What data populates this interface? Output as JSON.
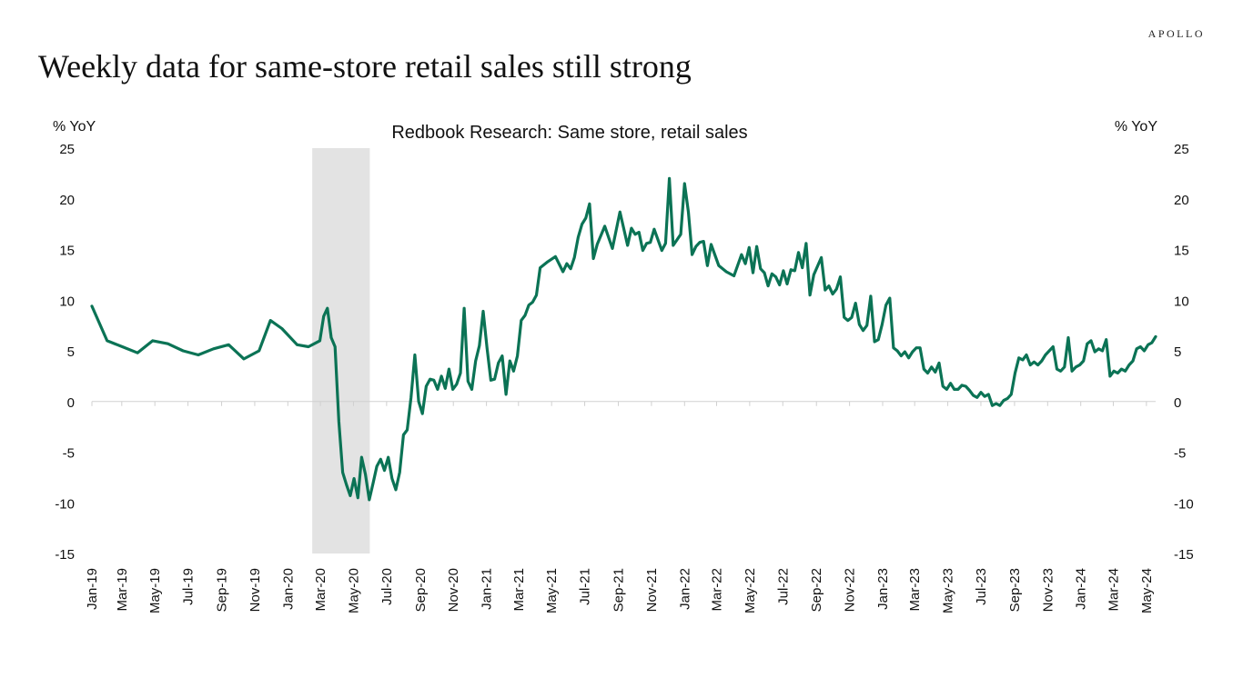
{
  "brand": "APOLLO",
  "headline": "Weekly data for same-store retail sales still strong",
  "colors": {
    "line": "#0b7355",
    "recession": "#e3e3e3",
    "baseline": "#d0d0d0"
  },
  "chart_data": {
    "type": "line",
    "title": "Redbook Research: Same store, retail sales",
    "ylabel_left": "% YoY",
    "ylabel_right": "% YoY",
    "ylim": [
      -15,
      25
    ],
    "yticks": [
      -15,
      -10,
      -5,
      0,
      5,
      10,
      15,
      20,
      25
    ],
    "xlim": [
      "2019-01-05",
      "2024-05-18"
    ],
    "xticks": [
      {
        "date": "2019-01-01",
        "label": "Jan-19"
      },
      {
        "date": "2019-03-01",
        "label": "Mar-19"
      },
      {
        "date": "2019-05-01",
        "label": "May-19"
      },
      {
        "date": "2019-07-01",
        "label": "Jul-19"
      },
      {
        "date": "2019-09-01",
        "label": "Sep-19"
      },
      {
        "date": "2019-11-01",
        "label": "Nov-19"
      },
      {
        "date": "2020-01-01",
        "label": "Jan-20"
      },
      {
        "date": "2020-03-01",
        "label": "Mar-20"
      },
      {
        "date": "2020-05-01",
        "label": "May-20"
      },
      {
        "date": "2020-07-01",
        "label": "Jul-20"
      },
      {
        "date": "2020-09-01",
        "label": "Sep-20"
      },
      {
        "date": "2020-11-01",
        "label": "Nov-20"
      },
      {
        "date": "2021-01-01",
        "label": "Jan-21"
      },
      {
        "date": "2021-03-01",
        "label": "Mar-21"
      },
      {
        "date": "2021-05-01",
        "label": "May-21"
      },
      {
        "date": "2021-07-01",
        "label": "Jul-21"
      },
      {
        "date": "2021-09-01",
        "label": "Sep-21"
      },
      {
        "date": "2021-11-01",
        "label": "Nov-21"
      },
      {
        "date": "2022-01-01",
        "label": "Jan-22"
      },
      {
        "date": "2022-03-01",
        "label": "Mar-22"
      },
      {
        "date": "2022-05-01",
        "label": "May-22"
      },
      {
        "date": "2022-07-01",
        "label": "Jul-22"
      },
      {
        "date": "2022-09-01",
        "label": "Sep-22"
      },
      {
        "date": "2022-11-01",
        "label": "Nov-22"
      },
      {
        "date": "2023-01-01",
        "label": "Jan-23"
      },
      {
        "date": "2023-03-01",
        "label": "Mar-23"
      },
      {
        "date": "2023-05-01",
        "label": "May-23"
      },
      {
        "date": "2023-07-01",
        "label": "Jul-23"
      },
      {
        "date": "2023-09-01",
        "label": "Sep-23"
      },
      {
        "date": "2023-11-01",
        "label": "Nov-23"
      },
      {
        "date": "2024-01-01",
        "label": "Jan-24"
      },
      {
        "date": "2024-03-01",
        "label": "Mar-24"
      },
      {
        "date": "2024-05-01",
        "label": "May-24"
      }
    ],
    "recession": {
      "start": "2020-02-15",
      "end": "2020-05-31"
    },
    "series": [
      {
        "values": [
          [
            "2019-01-05",
            9.4
          ],
          [
            "2019-02-02",
            6.0
          ],
          [
            "2019-03-02",
            5.4
          ],
          [
            "2019-03-30",
            4.8
          ],
          [
            "2019-04-27",
            6.0
          ],
          [
            "2019-05-25",
            5.7
          ],
          [
            "2019-06-22",
            5.0
          ],
          [
            "2019-07-20",
            4.6
          ],
          [
            "2019-08-17",
            5.2
          ],
          [
            "2019-09-14",
            5.6
          ],
          [
            "2019-10-12",
            4.2
          ],
          [
            "2019-11-09",
            5.0
          ],
          [
            "2019-11-30",
            8.0
          ],
          [
            "2019-12-21",
            7.2
          ],
          [
            "2020-01-18",
            5.6
          ],
          [
            "2020-02-08",
            5.4
          ],
          [
            "2020-02-29",
            6.0
          ],
          [
            "2020-03-07",
            8.4
          ],
          [
            "2020-03-14",
            9.2
          ],
          [
            "2020-03-21",
            6.3
          ],
          [
            "2020-03-28",
            5.4
          ],
          [
            "2020-04-04",
            -2.0
          ],
          [
            "2020-04-11",
            -7.0
          ],
          [
            "2020-04-18",
            -8.2
          ],
          [
            "2020-04-25",
            -9.3
          ],
          [
            "2020-05-02",
            -7.6
          ],
          [
            "2020-05-09",
            -9.5
          ],
          [
            "2020-05-16",
            -5.5
          ],
          [
            "2020-05-23",
            -7.2
          ],
          [
            "2020-05-30",
            -9.7
          ],
          [
            "2020-06-06",
            -8.1
          ],
          [
            "2020-06-13",
            -6.4
          ],
          [
            "2020-06-20",
            -5.7
          ],
          [
            "2020-06-27",
            -6.8
          ],
          [
            "2020-07-04",
            -5.5
          ],
          [
            "2020-07-11",
            -7.6
          ],
          [
            "2020-07-18",
            -8.7
          ],
          [
            "2020-07-25",
            -7.0
          ],
          [
            "2020-08-01",
            -3.3
          ],
          [
            "2020-08-08",
            -2.8
          ],
          [
            "2020-08-15",
            0.4
          ],
          [
            "2020-08-22",
            4.6
          ],
          [
            "2020-08-29",
            0.0
          ],
          [
            "2020-09-05",
            -1.2
          ],
          [
            "2020-09-12",
            1.5
          ],
          [
            "2020-09-19",
            2.2
          ],
          [
            "2020-09-26",
            2.1
          ],
          [
            "2020-10-03",
            1.2
          ],
          [
            "2020-10-10",
            2.5
          ],
          [
            "2020-10-17",
            1.3
          ],
          [
            "2020-10-24",
            3.2
          ],
          [
            "2020-10-31",
            1.2
          ],
          [
            "2020-11-07",
            1.7
          ],
          [
            "2020-11-14",
            2.8
          ],
          [
            "2020-11-21",
            9.2
          ],
          [
            "2020-11-28",
            2.0
          ],
          [
            "2020-12-05",
            1.2
          ],
          [
            "2020-12-12",
            4.0
          ],
          [
            "2020-12-19",
            5.5
          ],
          [
            "2020-12-26",
            8.9
          ],
          [
            "2021-01-02",
            5.3
          ],
          [
            "2021-01-09",
            2.1
          ],
          [
            "2021-01-16",
            2.2
          ],
          [
            "2021-01-23",
            3.8
          ],
          [
            "2021-01-30",
            4.5
          ],
          [
            "2021-02-06",
            0.7
          ],
          [
            "2021-02-13",
            4.0
          ],
          [
            "2021-02-20",
            3.0
          ],
          [
            "2021-02-27",
            4.5
          ],
          [
            "2021-03-06",
            8.0
          ],
          [
            "2021-03-13",
            8.5
          ],
          [
            "2021-03-20",
            9.5
          ],
          [
            "2021-03-27",
            9.8
          ],
          [
            "2021-04-03",
            10.5
          ],
          [
            "2021-04-10",
            13.2
          ],
          [
            "2021-04-24",
            13.8
          ],
          [
            "2021-05-08",
            14.3
          ],
          [
            "2021-05-22",
            12.8
          ],
          [
            "2021-05-29",
            13.6
          ],
          [
            "2021-06-05",
            13.1
          ],
          [
            "2021-06-12",
            14.2
          ],
          [
            "2021-06-19",
            16.2
          ],
          [
            "2021-06-26",
            17.5
          ],
          [
            "2021-07-03",
            18.1
          ],
          [
            "2021-07-10",
            19.5
          ],
          [
            "2021-07-17",
            14.1
          ],
          [
            "2021-07-24",
            15.5
          ],
          [
            "2021-08-07",
            17.3
          ],
          [
            "2021-08-21",
            15.1
          ],
          [
            "2021-09-04",
            18.7
          ],
          [
            "2021-09-18",
            15.4
          ],
          [
            "2021-09-25",
            17.1
          ],
          [
            "2021-10-02",
            16.5
          ],
          [
            "2021-10-09",
            16.7
          ],
          [
            "2021-10-16",
            14.9
          ],
          [
            "2021-10-23",
            15.6
          ],
          [
            "2021-10-30",
            15.7
          ],
          [
            "2021-11-06",
            17.0
          ],
          [
            "2021-11-20",
            14.9
          ],
          [
            "2021-11-27",
            15.6
          ],
          [
            "2021-12-04",
            22.0
          ],
          [
            "2021-12-11",
            15.4
          ],
          [
            "2021-12-25",
            16.5
          ],
          [
            "2022-01-01",
            21.5
          ],
          [
            "2022-01-08",
            18.7
          ],
          [
            "2022-01-15",
            14.5
          ],
          [
            "2022-01-22",
            15.3
          ],
          [
            "2022-01-29",
            15.7
          ],
          [
            "2022-02-05",
            15.8
          ],
          [
            "2022-02-12",
            13.4
          ],
          [
            "2022-02-19",
            15.5
          ],
          [
            "2022-03-05",
            13.4
          ],
          [
            "2022-03-19",
            12.8
          ],
          [
            "2022-04-02",
            12.4
          ],
          [
            "2022-04-16",
            14.5
          ],
          [
            "2022-04-23",
            13.6
          ],
          [
            "2022-04-30",
            15.2
          ],
          [
            "2022-05-07",
            12.7
          ],
          [
            "2022-05-14",
            15.3
          ],
          [
            "2022-05-21",
            13.1
          ],
          [
            "2022-05-28",
            12.7
          ],
          [
            "2022-06-04",
            11.4
          ],
          [
            "2022-06-11",
            12.6
          ],
          [
            "2022-06-18",
            12.3
          ],
          [
            "2022-06-25",
            11.5
          ],
          [
            "2022-07-02",
            12.9
          ],
          [
            "2022-07-09",
            11.6
          ],
          [
            "2022-07-16",
            13.0
          ],
          [
            "2022-07-23",
            12.9
          ],
          [
            "2022-07-30",
            14.7
          ],
          [
            "2022-08-06",
            13.2
          ],
          [
            "2022-08-13",
            15.6
          ],
          [
            "2022-08-20",
            10.5
          ],
          [
            "2022-08-27",
            12.5
          ],
          [
            "2022-09-10",
            14.2
          ],
          [
            "2022-09-17",
            11.0
          ],
          [
            "2022-09-24",
            11.4
          ],
          [
            "2022-10-01",
            10.6
          ],
          [
            "2022-10-08",
            11.1
          ],
          [
            "2022-10-15",
            12.3
          ],
          [
            "2022-10-22",
            8.3
          ],
          [
            "2022-10-29",
            8.0
          ],
          [
            "2022-11-05",
            8.3
          ],
          [
            "2022-11-12",
            9.7
          ],
          [
            "2022-11-19",
            7.6
          ],
          [
            "2022-11-26",
            7.0
          ],
          [
            "2022-12-03",
            7.5
          ],
          [
            "2022-12-10",
            10.4
          ],
          [
            "2022-12-17",
            5.9
          ],
          [
            "2022-12-24",
            6.1
          ],
          [
            "2022-12-31",
            7.6
          ],
          [
            "2023-01-07",
            9.5
          ],
          [
            "2023-01-14",
            10.2
          ],
          [
            "2023-01-21",
            5.3
          ],
          [
            "2023-01-28",
            5.0
          ],
          [
            "2023-02-04",
            4.5
          ],
          [
            "2023-02-11",
            4.9
          ],
          [
            "2023-02-18",
            4.3
          ],
          [
            "2023-02-25",
            4.9
          ],
          [
            "2023-03-04",
            5.3
          ],
          [
            "2023-03-11",
            5.3
          ],
          [
            "2023-03-18",
            3.2
          ],
          [
            "2023-03-25",
            2.8
          ],
          [
            "2023-04-01",
            3.4
          ],
          [
            "2023-04-08",
            2.9
          ],
          [
            "2023-04-15",
            3.8
          ],
          [
            "2023-04-22",
            1.5
          ],
          [
            "2023-04-29",
            1.2
          ],
          [
            "2023-05-06",
            1.8
          ],
          [
            "2023-05-13",
            1.2
          ],
          [
            "2023-05-20",
            1.2
          ],
          [
            "2023-05-27",
            1.6
          ],
          [
            "2023-06-03",
            1.5
          ],
          [
            "2023-06-10",
            1.1
          ],
          [
            "2023-06-17",
            0.6
          ],
          [
            "2023-06-24",
            0.4
          ],
          [
            "2023-07-01",
            0.9
          ],
          [
            "2023-07-08",
            0.5
          ],
          [
            "2023-07-15",
            0.7
          ],
          [
            "2023-07-22",
            -0.4
          ],
          [
            "2023-07-29",
            -0.2
          ],
          [
            "2023-08-05",
            -0.4
          ],
          [
            "2023-08-12",
            0.1
          ],
          [
            "2023-08-19",
            0.3
          ],
          [
            "2023-08-26",
            0.7
          ],
          [
            "2023-09-02",
            2.8
          ],
          [
            "2023-09-09",
            4.3
          ],
          [
            "2023-09-16",
            4.1
          ],
          [
            "2023-09-23",
            4.6
          ],
          [
            "2023-09-30",
            3.6
          ],
          [
            "2023-10-07",
            3.9
          ],
          [
            "2023-10-14",
            3.6
          ],
          [
            "2023-10-21",
            4.0
          ],
          [
            "2023-10-28",
            4.6
          ],
          [
            "2023-11-04",
            5.0
          ],
          [
            "2023-11-11",
            5.4
          ],
          [
            "2023-11-18",
            3.2
          ],
          [
            "2023-11-25",
            3.0
          ],
          [
            "2023-12-02",
            3.4
          ],
          [
            "2023-12-09",
            6.3
          ],
          [
            "2023-12-16",
            3.0
          ],
          [
            "2023-12-23",
            3.4
          ],
          [
            "2023-12-30",
            3.6
          ],
          [
            "2024-01-06",
            4.0
          ],
          [
            "2024-01-13",
            5.7
          ],
          [
            "2024-01-20",
            6.0
          ],
          [
            "2024-01-27",
            4.9
          ],
          [
            "2024-02-03",
            5.2
          ],
          [
            "2024-02-10",
            5.0
          ],
          [
            "2024-02-17",
            6.1
          ],
          [
            "2024-02-24",
            2.5
          ],
          [
            "2024-03-02",
            3.0
          ],
          [
            "2024-03-09",
            2.8
          ],
          [
            "2024-03-16",
            3.2
          ],
          [
            "2024-03-23",
            3.0
          ],
          [
            "2024-03-30",
            3.6
          ],
          [
            "2024-04-06",
            4.0
          ],
          [
            "2024-04-13",
            5.2
          ],
          [
            "2024-04-20",
            5.4
          ],
          [
            "2024-04-27",
            5.0
          ],
          [
            "2024-05-04",
            5.6
          ],
          [
            "2024-05-11",
            5.8
          ],
          [
            "2024-05-18",
            6.4
          ]
        ]
      }
    ]
  }
}
